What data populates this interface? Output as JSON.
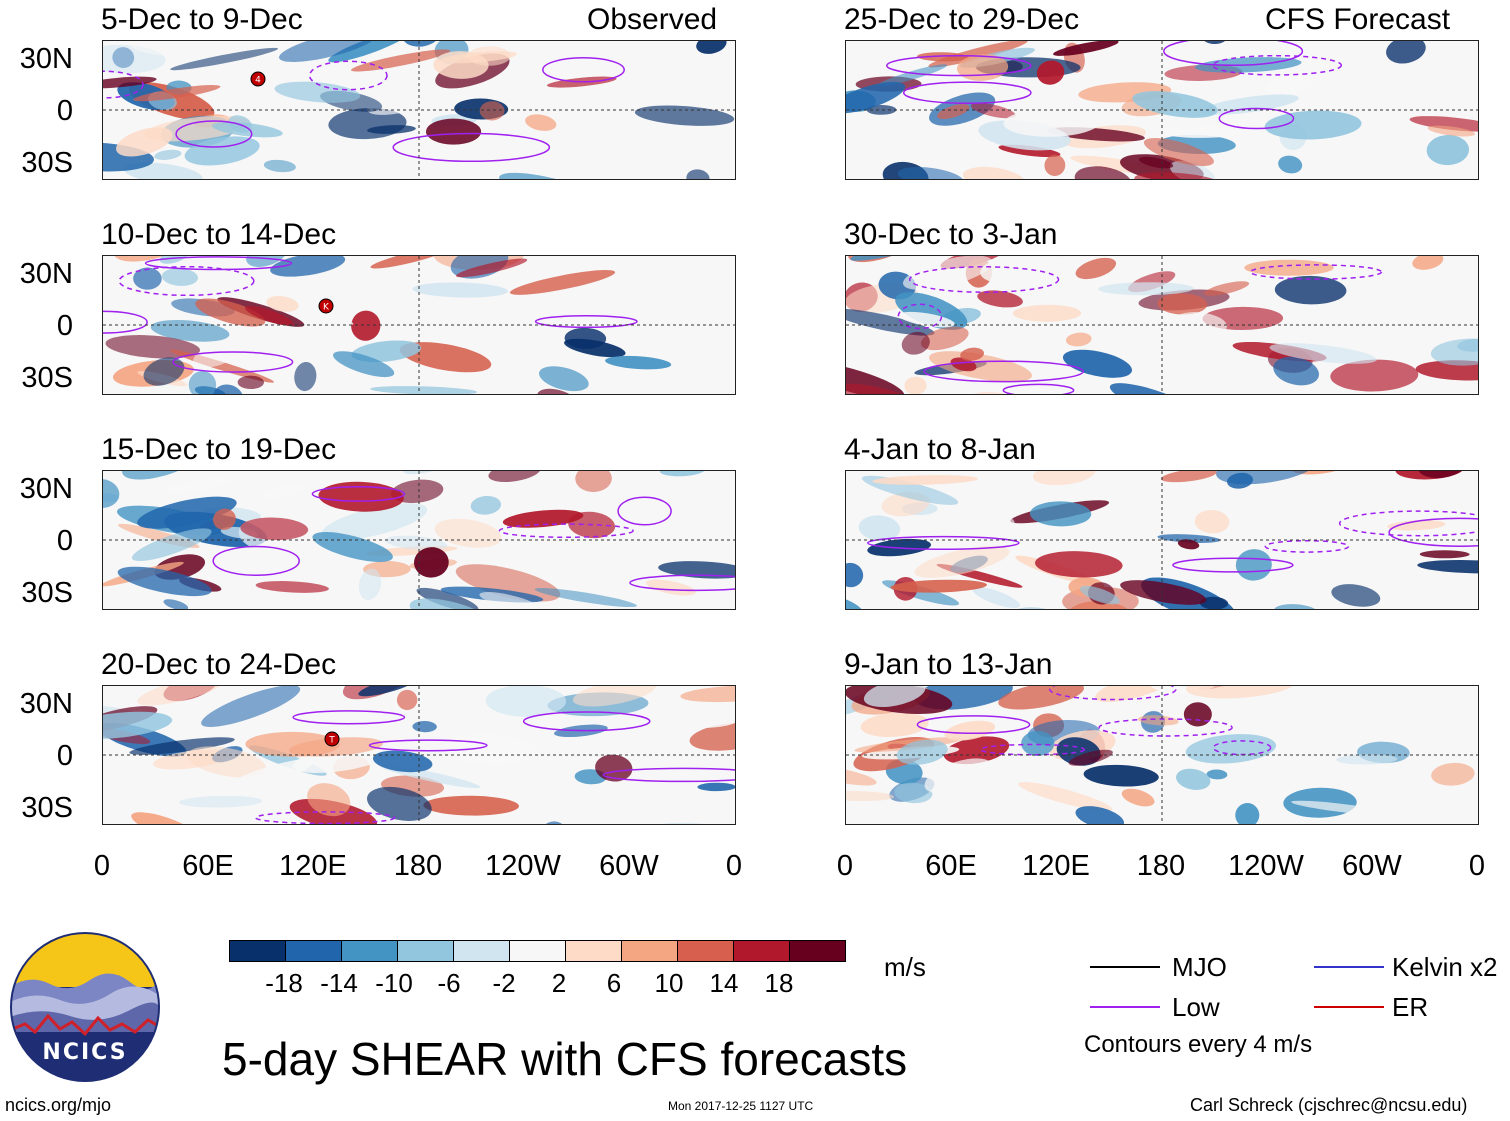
{
  "header": {
    "observed_label": "Observed",
    "forecast_label": "CFS Forecast"
  },
  "panels_left": [
    {
      "title": "5-Dec to 9-Dec"
    },
    {
      "title": "10-Dec to 14-Dec"
    },
    {
      "title": "15-Dec to 19-Dec"
    },
    {
      "title": "20-Dec to 24-Dec"
    }
  ],
  "panels_right": [
    {
      "title": "25-Dec to 29-Dec"
    },
    {
      "title": "30-Dec to 3-Jan"
    },
    {
      "title": "4-Jan to 8-Jan"
    },
    {
      "title": "9-Jan to 13-Jan"
    }
  ],
  "y_axis": [
    "30N",
    "0",
    "30S"
  ],
  "x_axis": [
    "0",
    "60E",
    "120E",
    "180",
    "120W",
    "60W",
    "0"
  ],
  "colorbar": {
    "colors": [
      "#08306b",
      "#2166ac",
      "#4393c3",
      "#92c5de",
      "#d1e5f0",
      "#f7f7f7",
      "#fddbc7",
      "#f4a582",
      "#d6604d",
      "#b2182b",
      "#67001f"
    ],
    "labels": [
      "-18",
      "-14",
      "-10",
      "-6",
      "-2",
      "2",
      "6",
      "10",
      "14",
      "18"
    ],
    "units": "m/s"
  },
  "legend": {
    "mjo": "MJO",
    "kelvin": "Kelvin x2",
    "low": "Low",
    "er": "ER",
    "contours": "Contours every 4 m/s",
    "colors": {
      "mjo": "#000000",
      "kelvin": "#3333cc",
      "low": "#a020f0",
      "er": "#cc0000"
    }
  },
  "storm_markers": [
    "4",
    "K",
    "T"
  ],
  "logo_text": "NCICS",
  "title": "5-day SHEAR with CFS forecasts",
  "footer": {
    "left": "ncics.org/mjo",
    "center": "Mon 2017-12-25 1127 UTC",
    "right": "Carl Schreck (cjschrec@ncsu.edu)"
  }
}
